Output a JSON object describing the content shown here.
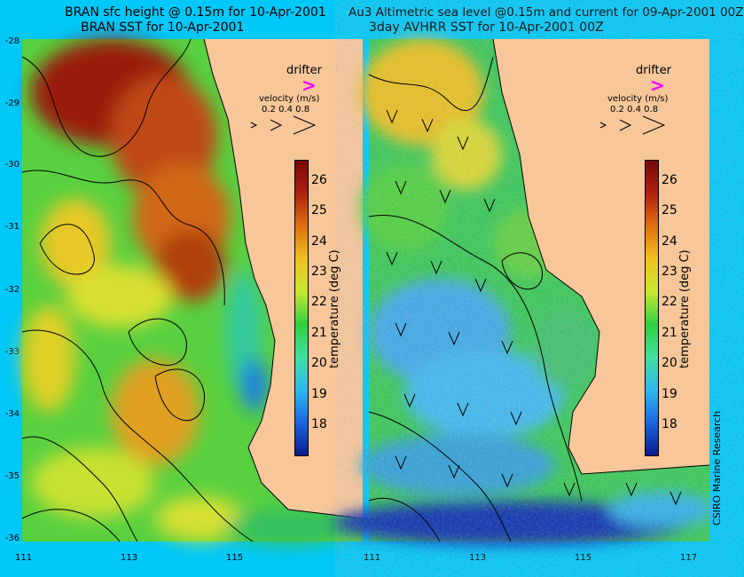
{
  "titles": {
    "left_line1": "BRAN sfc height @ 0.15m for 10-Apr-2001",
    "left_line2": "BRAN SST for 10-Apr-2001",
    "right_line1": "Au3 Altimetric sea level  @0.15m and current for 09-Apr-2001 00Z",
    "right_line2": "3day AVHRR SST for 10-Apr-2001 00Z"
  },
  "axes": {
    "lat_labels": [
      "-28",
      "-29",
      "-30",
      "-31",
      "-32",
      "-33",
      "-34",
      "-35",
      "-36"
    ],
    "lon_labels": [
      "111",
      "113",
      "115",
      "117"
    ]
  },
  "legend": {
    "drifter": "drifter",
    "velocity_title": "velocity (m/s)",
    "velocity_values": "0.2 0.4 0.8",
    "drifter_color": "#ff00ff"
  },
  "colorbar": {
    "title": "temperature (deg C)",
    "ticks": [
      "26",
      "25",
      "24",
      "23",
      "22",
      "21",
      "20",
      "19",
      "18"
    ],
    "range": [
      17.3,
      26.7
    ],
    "colors": [
      "#0a1a8c",
      "#1a66e0",
      "#30b8f0",
      "#40e0a0",
      "#30d040",
      "#c8e830",
      "#f0c020",
      "#e07010",
      "#b02010",
      "#780808"
    ]
  },
  "credit": "CSIRO Marine Research"
}
